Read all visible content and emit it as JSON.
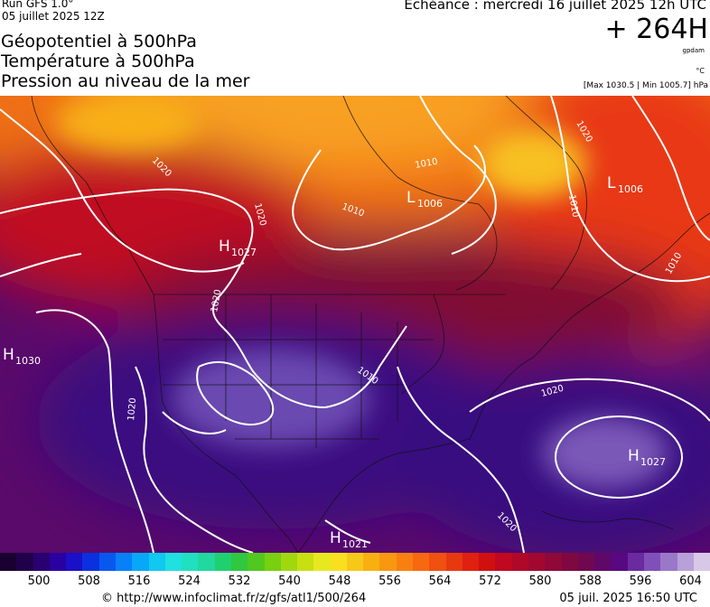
{
  "header": {
    "run": "Run GFS 1.0°",
    "run_date": "05 juillet 2025 12Z",
    "titles": [
      "Géopotentiel à 500hPa",
      "Température à 500hPa",
      "Pression au niveau de la mer"
    ],
    "echeance": "Echéance : mercredi 16 juillet 2025 12h UTC",
    "offset": "+ 264H",
    "unit_geopotential": "gpdam",
    "unit_temperature": "°C",
    "pressure_range": "[Max 1030.5 | Min 1005.7] hPa"
  },
  "map": {
    "pressure_centers": [
      {
        "type": "H",
        "value": "1027",
        "name": "north-pacific-high-west-coast"
      },
      {
        "type": "L",
        "value": "1006",
        "name": "canada-low"
      },
      {
        "type": "L",
        "value": "1006",
        "name": "labrador-low"
      },
      {
        "type": "H",
        "value": "1030",
        "name": "pacific-high"
      },
      {
        "type": "H",
        "value": "1027",
        "name": "atlantic-high"
      },
      {
        "type": "H",
        "value": "1021",
        "name": "gulf-high"
      }
    ],
    "isobar_labels": [
      "1020",
      "1020",
      "1020",
      "1020",
      "1010",
      "1010",
      "1010",
      "1010",
      "1010",
      "1020",
      "1020",
      "1020"
    ]
  },
  "colorbar": {
    "colors": [
      "#1a0030",
      "#20004a",
      "#2a0070",
      "#2a00a0",
      "#1a10c8",
      "#0a30e0",
      "#0858f0",
      "#0880f8",
      "#08a8f8",
      "#10c8f0",
      "#20e0e0",
      "#20e0c0",
      "#20d8a0",
      "#20d070",
      "#30c840",
      "#50c820",
      "#78d010",
      "#a0d810",
      "#c8e010",
      "#e8e820",
      "#f8e020",
      "#f8c818",
      "#f8b010",
      "#f89810",
      "#f88010",
      "#f86810",
      "#f05010",
      "#e83810",
      "#e02010",
      "#d01010",
      "#c00820",
      "#b00828",
      "#a00830",
      "#900838",
      "#800840",
      "#700850",
      "#600868",
      "#580880",
      "#6a2aa0",
      "#8050b8",
      "#9a78c8",
      "#b8a0d8",
      "#d8c8e8"
    ],
    "ticks": [
      "500",
      "508",
      "516",
      "524",
      "532",
      "540",
      "548",
      "556",
      "564",
      "572",
      "580",
      "588",
      "596",
      "604"
    ]
  },
  "footer": {
    "url": "© http://www.infoclimat.fr/z/gfs/atl1/500/264",
    "generated": "05 juil. 2025 16:50 UTC"
  }
}
